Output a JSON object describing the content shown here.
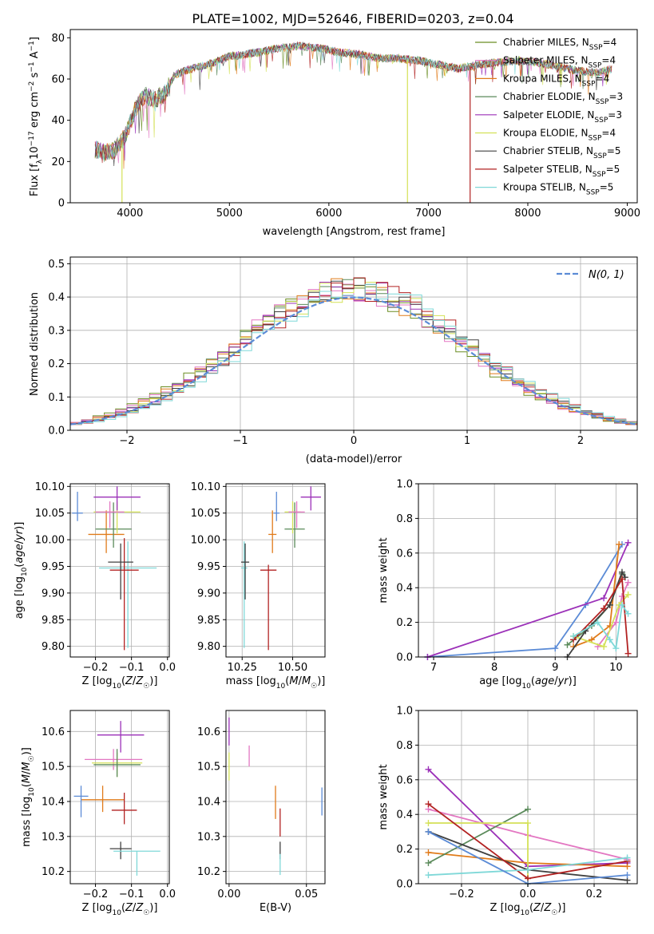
{
  "title": "PLATE=1002, MJD=52646, FIBERID=0203, z=0.04",
  "colors": {
    "Chabrier MILES": "#6b8e23",
    "Salpeter MILES": "#e377c2",
    "Kroupa MILES": "#e07b1a",
    "Chabrier ELODIE": "#5a8a5a",
    "Salpeter ELODIE": "#9b30b8",
    "Kroupa ELODIE": "#d4e157",
    "Chabrier STELIB": "#404040",
    "Salpeter STELIB": "#b22222",
    "Kroupa STELIB": "#7fd8d8",
    "normal": "#5b8bd6"
  },
  "chart_data": [
    {
      "type": "line",
      "id": "spectrum",
      "xlabel": "wavelength [Angstrom, rest frame]",
      "ylabel": "Flux [f_λ 10^-17 erg cm^-2 s^-1 A^-1]",
      "xlim": [
        3400,
        9100
      ],
      "ylim": [
        0,
        84
      ],
      "xticks": [
        4000,
        5000,
        6000,
        7000,
        8000,
        9000
      ],
      "yticks": [
        0,
        20,
        40,
        60,
        80
      ],
      "legend_position": "top-right",
      "legend": [
        {
          "name": "Chabrier MILES",
          "suffix": "4"
        },
        {
          "name": "Salpeter MILES",
          "suffix": "4"
        },
        {
          "name": "Kroupa MILES",
          "suffix": "4"
        },
        {
          "name": "Chabrier ELODIE",
          "suffix": "3"
        },
        {
          "name": "Salpeter ELODIE",
          "suffix": "3"
        },
        {
          "name": "Kroupa ELODIE",
          "suffix": "4"
        },
        {
          "name": "Chabrier STELIB",
          "suffix": "5"
        },
        {
          "name": "Salpeter STELIB",
          "suffix": "5"
        },
        {
          "name": "Kroupa STELIB",
          "suffix": "5"
        }
      ],
      "continuum": [
        [
          3650,
          26
        ],
        [
          3750,
          24
        ],
        [
          3850,
          26
        ],
        [
          3950,
          32
        ],
        [
          4050,
          45
        ],
        [
          4150,
          52
        ],
        [
          4250,
          50
        ],
        [
          4350,
          53
        ],
        [
          4450,
          62
        ],
        [
          4550,
          64
        ],
        [
          4700,
          66
        ],
        [
          4850,
          68
        ],
        [
          5000,
          71
        ],
        [
          5150,
          72
        ],
        [
          5300,
          73
        ],
        [
          5500,
          75
        ],
        [
          5700,
          76
        ],
        [
          5900,
          75
        ],
        [
          6100,
          73
        ],
        [
          6300,
          72
        ],
        [
          6500,
          70
        ],
        [
          6700,
          70
        ],
        [
          6900,
          69
        ],
        [
          7100,
          67
        ],
        [
          7300,
          65
        ],
        [
          7500,
          67
        ],
        [
          7700,
          68
        ],
        [
          7900,
          69
        ],
        [
          8100,
          68
        ],
        [
          8300,
          66
        ],
        [
          8500,
          64
        ],
        [
          8700,
          63
        ],
        [
          8850,
          65
        ]
      ],
      "dropouts": [
        {
          "name": "Kroupa ELODIE",
          "x": 3920
        },
        {
          "name": "Kroupa ELODIE",
          "x": 6790
        },
        {
          "name": "Salpeter STELIB",
          "x": 7420
        }
      ]
    },
    {
      "type": "bar",
      "id": "residuals",
      "xlabel": "(data-model)/error",
      "ylabel": "Normed distribution",
      "xlim": [
        -2.5,
        2.5
      ],
      "ylim": [
        0,
        0.52
      ],
      "xticks": [
        -2,
        -1,
        0,
        1,
        2
      ],
      "yticks": [
        0.0,
        0.1,
        0.2,
        0.3,
        0.4,
        0.5
      ],
      "grid": true,
      "legend_position": "top-right",
      "overlay_label": "N(0, 1)",
      "bin_width": 0.1
    },
    {
      "type": "scatter",
      "id": "age_vs_Z",
      "xlabel": "Z [log10(Z/Z☉)]",
      "ylabel": "age  [log10(age/yr)]",
      "xlim": [
        -0.27,
        0.005
      ],
      "ylim": [
        9.78,
        10.105
      ],
      "xticks": [
        -0.2,
        -0.1,
        0.0
      ],
      "yticks": [
        9.8,
        9.85,
        9.9,
        9.95,
        10.0,
        10.05,
        10.1
      ],
      "grid": true,
      "points": [
        {
          "name": "Kroupa STELIB",
          "x": -0.11,
          "y": 9.947,
          "xerr": [
            0.08,
            0.08
          ],
          "yerr": [
            0.15,
            0.05
          ]
        },
        {
          "name": "Salpeter STELIB",
          "x": -0.12,
          "y": 9.943,
          "xerr": [
            0.04,
            0.04
          ],
          "yerr": [
            0.15,
            0.06
          ]
        },
        {
          "name": "Chabrier STELIB",
          "x": -0.13,
          "y": 9.958,
          "xerr": [
            0.035,
            0.035
          ],
          "yerr": [
            0.07,
            0.035
          ]
        },
        {
          "name": "Kroupa MILES",
          "x": -0.17,
          "y": 10.01,
          "xerr": [
            0.05,
            0.05
          ],
          "yerr": [
            0.035,
            0.045
          ]
        },
        {
          "name": "Chabrier ELODIE",
          "x": -0.15,
          "y": 10.02,
          "xerr": [
            0.05,
            0.05
          ],
          "yerr": [
            0.035,
            0.05
          ]
        },
        {
          "name": "Kroupa ELODIE",
          "x": -0.14,
          "y": 10.052,
          "xerr": [
            0.065,
            0.065
          ],
          "yerr": [
            0.04,
            0.02
          ]
        },
        {
          "name": "Salpeter MILES",
          "x": -0.16,
          "y": 10.052,
          "xerr": [
            0.04,
            0.04
          ],
          "yerr": [
            0.03,
            0.02
          ]
        },
        {
          "name": "Salpeter ELODIE",
          "x": -0.14,
          "y": 10.08,
          "xerr": [
            0.065,
            0.065
          ],
          "yerr": [
            0.025,
            0.02
          ]
        },
        {
          "name": "normal",
          "x": -0.25,
          "y": 10.05,
          "xerr": [
            0.015,
            0.015
          ],
          "yerr": [
            0.015,
            0.04
          ]
        }
      ]
    },
    {
      "type": "scatter",
      "id": "age_vs_mass",
      "xlabel": "mass [log10(M/M☉)]",
      "ylabel": "",
      "xlim": [
        10.17,
        10.66
      ],
      "ylim": [
        9.78,
        10.105
      ],
      "xticks": [
        10.25,
        10.5
      ],
      "yticks": [
        9.8,
        9.85,
        9.9,
        9.95,
        10.0,
        10.05,
        10.1
      ],
      "grid": true,
      "points": [
        {
          "name": "Kroupa STELIB",
          "x": 10.26,
          "y": 9.947,
          "xerr": [
            0.015,
            0.015
          ],
          "yerr": [
            0.15,
            0.05
          ]
        },
        {
          "name": "Salpeter STELIB",
          "x": 10.38,
          "y": 9.943,
          "xerr": [
            0.04,
            0.04
          ],
          "yerr": [
            0.15,
            0.01
          ]
        },
        {
          "name": "Chabrier STELIB",
          "x": 10.265,
          "y": 9.958,
          "xerr": [
            0.02,
            0.02
          ],
          "yerr": [
            0.07,
            0.035
          ]
        },
        {
          "name": "Kroupa MILES",
          "x": 10.4,
          "y": 10.01,
          "xerr": [
            0.02,
            0.02
          ],
          "yerr": [
            0.035,
            0.045
          ]
        },
        {
          "name": "Chabrier ELODIE",
          "x": 10.51,
          "y": 10.02,
          "xerr": [
            0.05,
            0.05
          ],
          "yerr": [
            0.035,
            0.05
          ]
        },
        {
          "name": "Kroupa ELODIE",
          "x": 10.5,
          "y": 10.052,
          "xerr": [
            0.04,
            0.04
          ],
          "yerr": [
            0.04,
            0.02
          ]
        },
        {
          "name": "Salpeter MILES",
          "x": 10.52,
          "y": 10.052,
          "xerr": [
            0.04,
            0.04
          ],
          "yerr": [
            0.03,
            0.02
          ]
        },
        {
          "name": "Salpeter ELODIE",
          "x": 10.59,
          "y": 10.08,
          "xerr": [
            0.05,
            0.05
          ],
          "yerr": [
            0.025,
            0.02
          ]
        },
        {
          "name": "normal",
          "x": 10.42,
          "y": 10.05,
          "xerr": [
            0.015,
            0.015
          ],
          "yerr": [
            0.015,
            0.04
          ]
        }
      ]
    },
    {
      "type": "line",
      "id": "mw_vs_age",
      "xlabel": "age  [log10(age/yr)]",
      "ylabel": "mass weight",
      "xlim": [
        6.75,
        10.35
      ],
      "ylim": [
        0,
        1.0
      ],
      "xticks": [
        7,
        8,
        9,
        10
      ],
      "yticks": [
        0.0,
        0.2,
        0.4,
        0.6,
        0.8,
        1.0
      ],
      "grid": true,
      "series": [
        {
          "name": "normal",
          "x": [
            6.9,
            9.0,
            9.5,
            10.1
          ],
          "y": [
            0.0,
            0.05,
            0.3,
            0.65
          ]
        },
        {
          "name": "Salpeter ELODIE",
          "x": [
            6.9,
            9.8,
            10.2
          ],
          "y": [
            0.0,
            0.34,
            0.66
          ]
        },
        {
          "name": "Kroupa MILES",
          "x": [
            9.3,
            9.6,
            9.9,
            10.05
          ],
          "y": [
            0.06,
            0.1,
            0.18,
            0.65
          ]
        },
        {
          "name": "Salpeter MILES",
          "x": [
            9.7,
            10.0,
            10.1,
            10.2
          ],
          "y": [
            0.06,
            0.2,
            0.35,
            0.43
          ]
        },
        {
          "name": "Chabrier ELODIE",
          "x": [
            9.2,
            9.6,
            9.9,
            10.1
          ],
          "y": [
            0.07,
            0.18,
            0.3,
            0.48
          ]
        },
        {
          "name": "Kroupa ELODIE",
          "x": [
            9.3,
            9.8,
            10.05,
            10.2
          ],
          "y": [
            0.12,
            0.06,
            0.3,
            0.36
          ]
        },
        {
          "name": "Chabrier STELIB",
          "x": [
            9.2,
            9.5,
            9.9,
            10.1,
            10.15
          ],
          "y": [
            0.0,
            0.15,
            0.3,
            0.49,
            0.46
          ]
        },
        {
          "name": "Salpeter STELIB",
          "x": [
            9.3,
            9.8,
            10.1,
            10.2
          ],
          "y": [
            0.1,
            0.28,
            0.45,
            0.02
          ]
        },
        {
          "name": "Kroupa STELIB",
          "x": [
            9.3,
            9.7,
            9.9,
            10.0,
            10.1,
            10.2
          ],
          "y": [
            0.12,
            0.2,
            0.1,
            0.05,
            0.3,
            0.25
          ]
        }
      ]
    },
    {
      "type": "scatter",
      "id": "mass_vs_Z",
      "xlabel": "Z [log10(Z/Z☉)]",
      "ylabel": "mass [log10(M/M☉)]",
      "xlim": [
        -0.27,
        0.005
      ],
      "ylim": [
        10.165,
        10.66
      ],
      "xticks": [
        -0.2,
        -0.1,
        0.0
      ],
      "yticks": [
        10.2,
        10.3,
        10.4,
        10.5,
        10.6
      ],
      "grid": true,
      "points": [
        {
          "name": "Salpeter ELODIE",
          "x": -0.13,
          "y": 10.59,
          "xerr": [
            0.065,
            0.065
          ],
          "yerr": [
            0.05,
            0.04
          ]
        },
        {
          "name": "Salpeter MILES",
          "x": -0.15,
          "y": 10.52,
          "xerr": [
            0.08,
            0.08
          ],
          "yerr": [
            0.03,
            0.03
          ]
        },
        {
          "name": "Kroupa ELODIE",
          "x": -0.14,
          "y": 10.51,
          "xerr": [
            0.07,
            0.07
          ],
          "yerr": [
            0.04,
            0.03
          ]
        },
        {
          "name": "Chabrier ELODIE",
          "x": -0.14,
          "y": 10.505,
          "xerr": [
            0.065,
            0.065
          ],
          "yerr": [
            0.035,
            0.045
          ]
        },
        {
          "name": "Kroupa MILES",
          "x": -0.18,
          "y": 10.405,
          "xerr": [
            0.06,
            0.06
          ],
          "yerr": [
            0.035,
            0.04
          ]
        },
        {
          "name": "normal",
          "x": -0.24,
          "y": 10.415,
          "xerr": [
            0.02,
            0.02
          ],
          "yerr": [
            0.06,
            0.03
          ]
        },
        {
          "name": "Salpeter STELIB",
          "x": -0.12,
          "y": 10.375,
          "xerr": [
            0.035,
            0.035
          ],
          "yerr": [
            0.04,
            0.05
          ]
        },
        {
          "name": "Chabrier STELIB",
          "x": -0.13,
          "y": 10.265,
          "xerr": [
            0.03,
            0.03
          ],
          "yerr": [
            0.03,
            0.02
          ]
        },
        {
          "name": "Kroupa STELIB",
          "x": -0.085,
          "y": 10.258,
          "xerr": [
            0.065,
            0.065
          ],
          "yerr": [
            0.07,
            0.0
          ]
        }
      ]
    },
    {
      "type": "scatter",
      "id": "mass_vs_EBV",
      "xlabel": "E(B-V)",
      "ylabel": "",
      "xlim": [
        -0.002,
        0.062
      ],
      "ylim": [
        10.165,
        10.66
      ],
      "xticks": [
        0.0,
        0.05
      ],
      "yticks": [
        10.2,
        10.3,
        10.4,
        10.5,
        10.6
      ],
      "grid": true,
      "points": [
        {
          "name": "Salpeter ELODIE",
          "x": 0.0,
          "y": 10.6,
          "xerr": [
            0,
            0
          ],
          "yerr": [
            0.04,
            0.04
          ]
        },
        {
          "name": "Salpeter MILES",
          "x": 0.013,
          "y": 10.52,
          "xerr": [
            0,
            0
          ],
          "yerr": [
            0.02,
            0.04
          ]
        },
        {
          "name": "Kroupa ELODIE",
          "x": 0.0,
          "y": 10.5,
          "xerr": [
            0,
            0
          ],
          "yerr": [
            0.04,
            0.04
          ]
        },
        {
          "name": "Kroupa MILES",
          "x": 0.03,
          "y": 10.395,
          "xerr": [
            0,
            0
          ],
          "yerr": [
            0.045,
            0.05
          ]
        },
        {
          "name": "normal",
          "x": 0.06,
          "y": 10.4,
          "xerr": [
            0,
            0
          ],
          "yerr": [
            0.04,
            0.04
          ]
        },
        {
          "name": "Salpeter STELIB",
          "x": 0.033,
          "y": 10.34,
          "xerr": [
            0,
            0
          ],
          "yerr": [
            0.04,
            0.04
          ]
        },
        {
          "name": "Chabrier STELIB",
          "x": 0.033,
          "y": 10.265,
          "xerr": [
            0,
            0
          ],
          "yerr": [
            0.03,
            0.02
          ]
        },
        {
          "name": "Kroupa STELIB",
          "x": 0.033,
          "y": 10.23,
          "xerr": [
            0,
            0
          ],
          "yerr": [
            0.04,
            0.02
          ]
        }
      ]
    },
    {
      "type": "line",
      "id": "mw_vs_Z",
      "xlabel": "Z [log10(Z/Z☉)]",
      "ylabel": "mass weight",
      "xlim": [
        -0.33,
        0.33
      ],
      "ylim": [
        0,
        1.0
      ],
      "xticks": [
        -0.2,
        0.0,
        0.2
      ],
      "yticks": [
        0.0,
        0.2,
        0.4,
        0.6,
        0.8,
        1.0
      ],
      "grid": true,
      "series": [
        {
          "name": "Salpeter ELODIE",
          "x": [
            -0.3,
            0.0,
            0.3
          ],
          "y": [
            0.66,
            0.1,
            0.12
          ]
        },
        {
          "name": "Kroupa MILES",
          "x": [
            -0.3,
            0.0,
            0.3
          ],
          "y": [
            0.18,
            0.12,
            0.1
          ]
        },
        {
          "name": "Salpeter MILES",
          "x": [
            -0.3,
            0.0,
            0.3
          ],
          "y": [
            0.43,
            0.28,
            0.14
          ]
        },
        {
          "name": "Chabrier ELODIE",
          "x": [
            -0.3,
            0.0
          ],
          "y": [
            0.12,
            0.43
          ]
        },
        {
          "name": "Kroupa ELODIE",
          "x": [
            -0.3,
            0.0,
            0.0
          ],
          "y": [
            0.35,
            0.35,
            0.0
          ]
        },
        {
          "name": "Chabrier STELIB",
          "x": [
            -0.3,
            0.0,
            0.3
          ],
          "y": [
            0.3,
            0.08,
            0.02
          ]
        },
        {
          "name": "Salpeter STELIB",
          "x": [
            -0.3,
            0.0,
            0.3
          ],
          "y": [
            0.46,
            0.03,
            0.13
          ]
        },
        {
          "name": "Kroupa STELIB",
          "x": [
            -0.3,
            0.0,
            0.3
          ],
          "y": [
            0.05,
            0.08,
            0.15
          ]
        },
        {
          "name": "normal",
          "x": [
            -0.3,
            0.0,
            0.3
          ],
          "y": [
            0.3,
            0.0,
            0.05
          ]
        }
      ]
    }
  ]
}
